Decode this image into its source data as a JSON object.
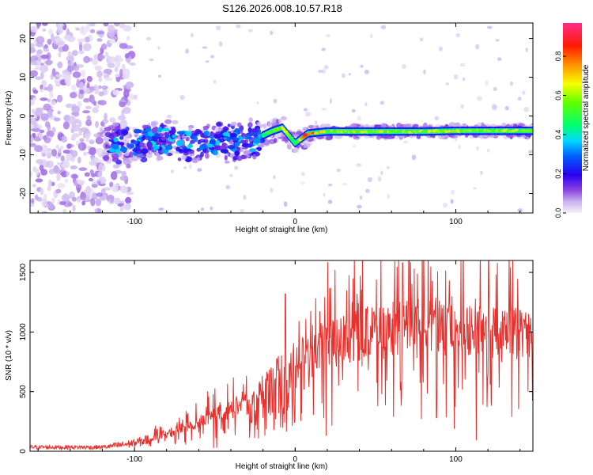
{
  "title": "S126.2026.008.10.57.R18",
  "colorbar": {
    "label": "Normalized spectral amplitude",
    "ticks": [
      "0.0",
      "0.2",
      "0.4",
      "0.6",
      "0.8"
    ],
    "tick_values": [
      0.0,
      0.2,
      0.4,
      0.6,
      0.8
    ],
    "range": [
      0.0,
      0.97
    ]
  },
  "chart_data": [
    {
      "type": "heatmap",
      "xlabel": "Height of straight line (km)",
      "ylabel": "Frequency (Hz)",
      "xlim": [
        -165,
        148
      ],
      "ylim": [
        -25,
        24
      ],
      "xticks": [
        -100,
        0,
        100
      ],
      "xtick_labels": [
        "-100",
        "0",
        "100"
      ],
      "yticks": [
        -20,
        -10,
        0,
        10,
        20
      ],
      "ytick_labels": [
        "-20",
        "-10",
        "0",
        "10",
        "20"
      ],
      "ridge": {
        "x": [
          -115,
          -100,
          -80,
          -60,
          -40,
          -25,
          -15,
          -8,
          0,
          8,
          20,
          40,
          60,
          80,
          100,
          120,
          148
        ],
        "freq_hz": [
          -7,
          -7,
          -6,
          -7,
          -7,
          -6,
          -4,
          -3,
          -7,
          -4.5,
          -4,
          -4,
          -4,
          -4,
          -3.8,
          -3.8,
          -3.8
        ],
        "amplitude": [
          0.3,
          0.35,
          0.35,
          0.35,
          0.35,
          0.4,
          0.55,
          0.65,
          0.5,
          0.85,
          0.6,
          0.6,
          0.6,
          0.62,
          0.65,
          0.6,
          0.6
        ]
      },
      "noise_region_x": [
        -165,
        -110
      ]
    },
    {
      "type": "line",
      "xlabel": "Height of straight line (km)",
      "ylabel": "SNR (10 * v/v)",
      "xlim": [
        -165,
        148
      ],
      "ylim": [
        0,
        1600
      ],
      "xticks": [
        -100,
        0,
        100
      ],
      "xtick_labels": [
        "-100",
        "0",
        "100"
      ],
      "yticks": [
        0,
        500,
        1000,
        1500
      ],
      "ytick_labels": [
        "0",
        "500",
        "1000",
        "1500"
      ],
      "series": [
        {
          "name": "SNR",
          "color": "#e8302c",
          "envelope_x": [
            -165,
            -120,
            -100,
            -80,
            -60,
            -40,
            -20,
            -10,
            0,
            20,
            40,
            60,
            80,
            100,
            120,
            148
          ],
          "envelope_y": [
            40,
            40,
            80,
            160,
            260,
            380,
            560,
            680,
            820,
            950,
            1050,
            1120,
            1120,
            1100,
            1080,
            1050
          ]
        }
      ]
    }
  ]
}
